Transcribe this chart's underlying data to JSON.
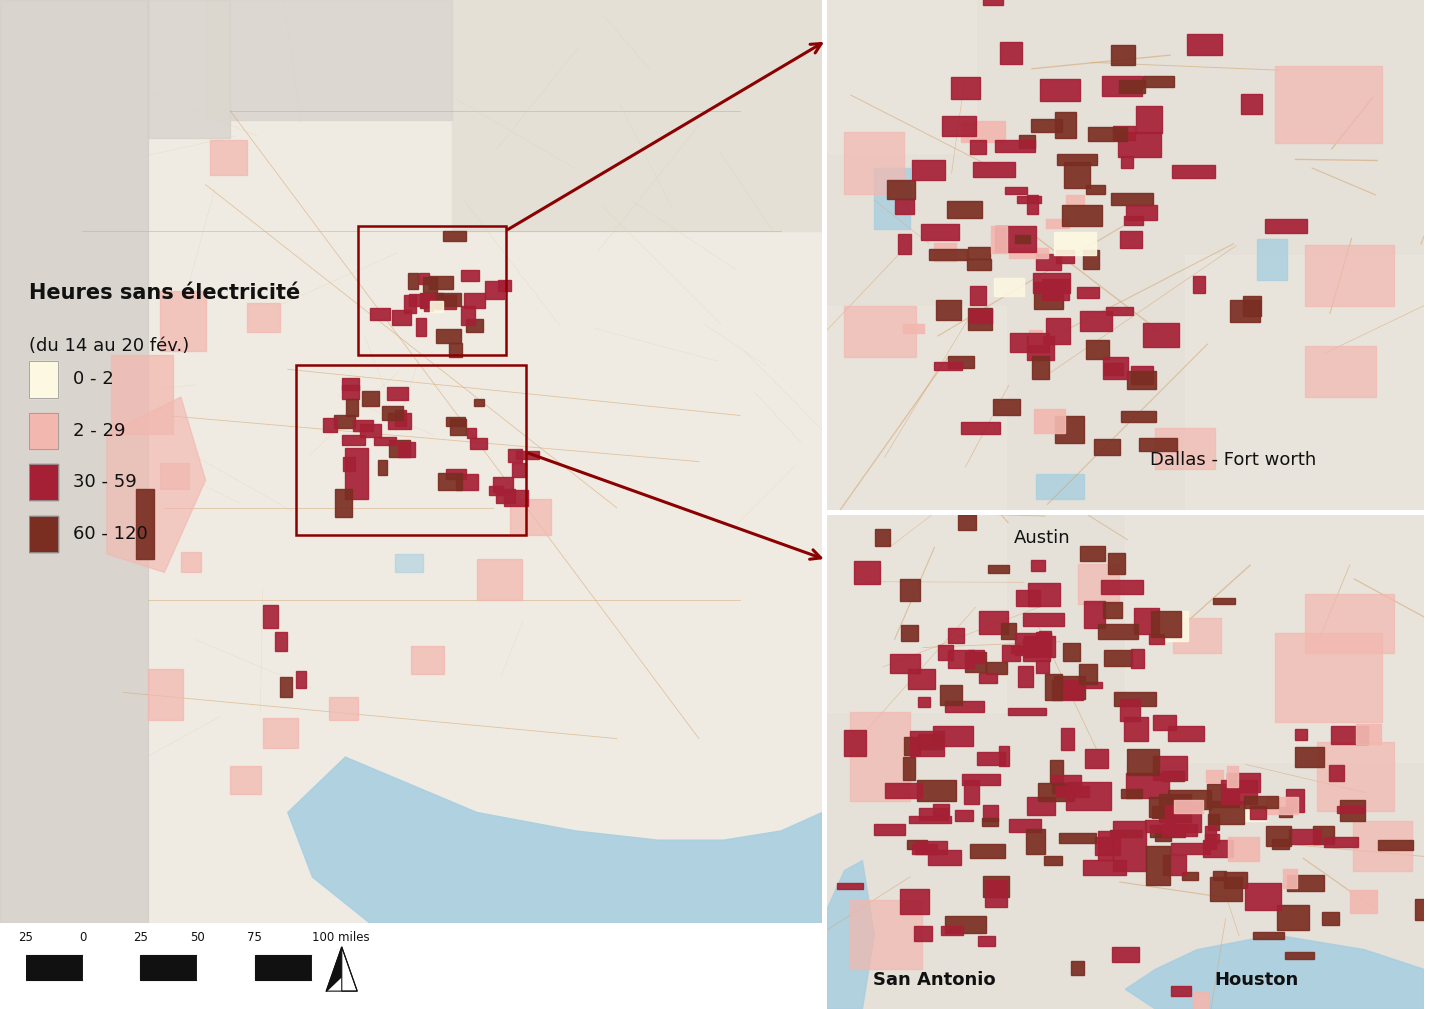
{
  "background_color": "#ffffff",
  "colors": {
    "light_yellow": "#fdf8e1",
    "light_pink": "#f2b8b0",
    "medium_red": "#a52035",
    "dark_brown": "#7a2e22",
    "map_bg_light": "#f0ebe2",
    "map_bg_med": "#e8e2d8",
    "map_bg_gray": "#d0ccc6",
    "map_bg_dark": "#c4c0ba",
    "road_color": "#d4a875",
    "road_minor": "#e8d4b0",
    "water_color": "#a8cfe0",
    "green_area": "#c8ddb0",
    "text_color": "#111111",
    "box_color": "#8b0000",
    "arrow_color": "#8b0000"
  },
  "legend": {
    "title": "Heures sans électricité",
    "subtitle": "(du 14 au 20 fév.)",
    "items": [
      {
        "label": "0 - 2",
        "color": "#fdf8e1"
      },
      {
        "label": "2 - 29",
        "color": "#f2b8b0"
      },
      {
        "label": "30 - 59",
        "color": "#a52035"
      },
      {
        "label": "60 - 120",
        "color": "#7a2e22"
      }
    ]
  },
  "scale_bar": {
    "labels": [
      "25",
      "0",
      "25",
      "50",
      "75",
      "100 miles"
    ]
  },
  "inset_dallas_label": "Dallas - Fort worth",
  "inset_labels": {
    "austin": "Austin",
    "san_antonio": "San Antonio",
    "houston": "Houston"
  }
}
